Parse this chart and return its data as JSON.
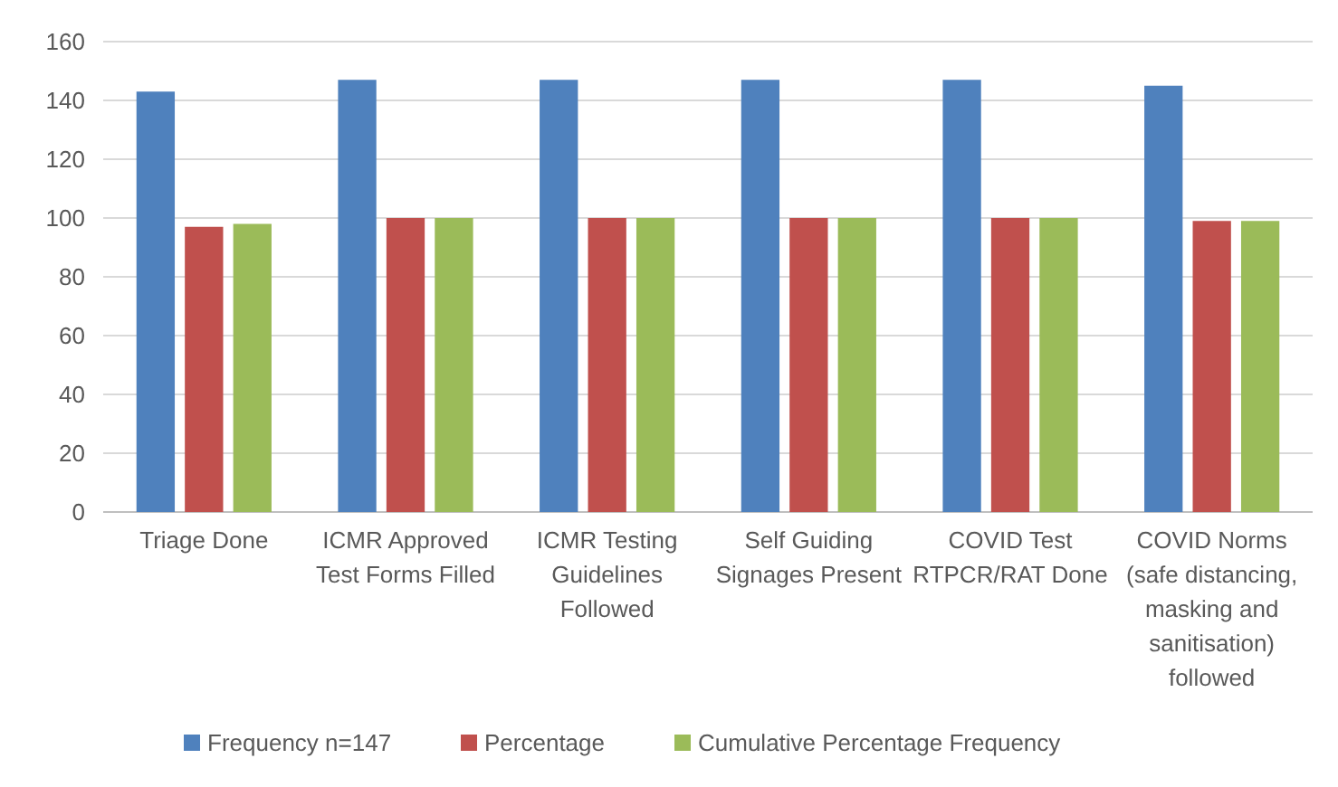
{
  "chart_data": {
    "type": "bar",
    "categories": [
      "Triage Done",
      "ICMR Approved\nTest Forms Filled",
      "ICMR Testing\nGuidelines\nFollowed",
      "Self Guiding\nSignages Present",
      "COVID Test\nRTPCR/RAT Done",
      "COVID Norms\n(safe distancing,\nmasking and\nsanitisation)\nfollowed"
    ],
    "series": [
      {
        "name": "Frequency n=147",
        "color": "#4f81bd",
        "values": [
          143,
          147,
          147,
          147,
          147,
          145
        ]
      },
      {
        "name": "Percentage",
        "color": "#c0504d",
        "values": [
          97,
          100,
          100,
          100,
          100,
          99
        ]
      },
      {
        "name": "Cumulative Percentage Frequency",
        "color": "#9bbb59",
        "values": [
          98,
          100,
          100,
          100,
          100,
          99
        ]
      }
    ],
    "ylim": [
      0,
      160
    ],
    "yticks": [
      0,
      20,
      40,
      60,
      80,
      100,
      120,
      140,
      160
    ],
    "grid": "y",
    "legend": "bottom"
  }
}
